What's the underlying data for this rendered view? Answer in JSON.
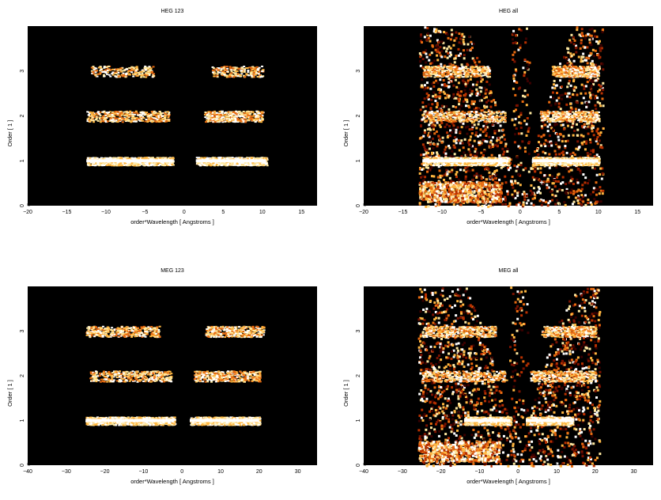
{
  "colors": {
    "background": "#000000",
    "ramp": [
      "#3a0000",
      "#7a1200",
      "#b83000",
      "#e86a10",
      "#ffb640",
      "#ffe9a0",
      "#ffffff"
    ]
  },
  "chart_data": [
    {
      "type": "heatmap",
      "title": "HEG 123",
      "xlabel": "order*Wavelength [ Angstroms ]",
      "ylabel": "Order [ 1 ]",
      "xlim": [
        -20,
        17
      ],
      "ylim": [
        0,
        4
      ],
      "xticks": [
        -20,
        -15,
        -10,
        -5,
        0,
        5,
        10,
        15
      ],
      "yticks": [
        0,
        1,
        2,
        3
      ],
      "features": [
        {
          "kind": "stripe",
          "order": 1,
          "x_ranges": [
            [
              -12.5,
              -1.5
            ],
            [
              1.5,
              10.5
            ]
          ],
          "peak": [
            -3,
            3
          ],
          "intensity": "high"
        },
        {
          "kind": "stripe",
          "order": 2,
          "x_ranges": [
            [
              -12.5,
              -2
            ],
            [
              2.5,
              10
            ]
          ],
          "intensity": "medium"
        },
        {
          "kind": "stripe",
          "order": 3,
          "x_ranges": [
            [
              -12,
              -4
            ],
            [
              3.5,
              10
            ]
          ],
          "intensity": "low"
        }
      ]
    },
    {
      "type": "heatmap",
      "title": "HEG all",
      "xlabel": "order*Wavelength [ Angstroms ]",
      "ylabel": "Order [ 1 ]",
      "xlim": [
        -20,
        17
      ],
      "ylim": [
        0,
        4
      ],
      "xticks": [
        -20,
        -15,
        -10,
        -5,
        0,
        5,
        10,
        15
      ],
      "yticks": [
        0,
        1,
        2,
        3
      ],
      "features": [
        {
          "kind": "scatter-region",
          "x_ranges": [
            [
              -13,
              10.5
            ]
          ],
          "intensity": "medium"
        },
        {
          "kind": "stripe",
          "order": 1,
          "x_ranges": [
            [
              -12.5,
              -1.5
            ],
            [
              1.5,
              10
            ]
          ],
          "intensity": "high"
        },
        {
          "kind": "stripe",
          "order": 2,
          "x_ranges": [
            [
              -12.5,
              -2
            ],
            [
              2.5,
              10
            ]
          ],
          "intensity": "medium"
        },
        {
          "kind": "stripe",
          "order": 3,
          "x_ranges": [
            [
              -12.5,
              -4
            ],
            [
              4,
              10
            ]
          ],
          "intensity": "medium"
        }
      ]
    },
    {
      "type": "heatmap",
      "title": "MEG 123",
      "xlabel": "order*Wavelength [ Angstroms ]",
      "ylabel": "Order [ 1 ]",
      "xlim": [
        -40,
        35
      ],
      "ylim": [
        0,
        4
      ],
      "xticks": [
        -40,
        -30,
        -20,
        -10,
        0,
        10,
        20,
        30
      ],
      "yticks": [
        0,
        1,
        2,
        3
      ],
      "features": [
        {
          "kind": "stripe",
          "order": 1,
          "x_ranges": [
            [
              -25,
              -2
            ],
            [
              2,
              20
            ]
          ],
          "peak": [
            -10,
            10
          ],
          "intensity": "high"
        },
        {
          "kind": "stripe",
          "order": 2,
          "x_ranges": [
            [
              -24,
              -3
            ],
            [
              3,
              20
            ]
          ],
          "intensity": "medium"
        },
        {
          "kind": "stripe",
          "order": 3,
          "x_ranges": [
            [
              -25,
              -6
            ],
            [
              6,
              21
            ]
          ],
          "intensity": "medium"
        }
      ]
    },
    {
      "type": "heatmap",
      "title": "MEG all",
      "xlabel": "order*Wavelength [ Angstroms ]",
      "ylabel": "Order [ 1 ]",
      "xlim": [
        -40,
        35
      ],
      "ylim": [
        0,
        4
      ],
      "xticks": [
        -40,
        -30,
        -20,
        -10,
        0,
        10,
        20,
        30
      ],
      "yticks": [
        0,
        1,
        2,
        3
      ],
      "features": [
        {
          "kind": "scatter-region",
          "x_ranges": [
            [
              -26,
              21
            ]
          ],
          "intensity": "medium"
        },
        {
          "kind": "stripe",
          "order": 1,
          "x_ranges": [
            [
              -14,
              -2
            ],
            [
              2,
              14
            ]
          ],
          "intensity": "high"
        },
        {
          "kind": "stripe",
          "order": 2,
          "x_ranges": [
            [
              -25,
              -3
            ],
            [
              3,
              20
            ]
          ],
          "intensity": "medium"
        },
        {
          "kind": "stripe",
          "order": 3,
          "x_ranges": [
            [
              -25,
              -6
            ],
            [
              6,
              20
            ]
          ],
          "intensity": "medium"
        }
      ]
    }
  ]
}
